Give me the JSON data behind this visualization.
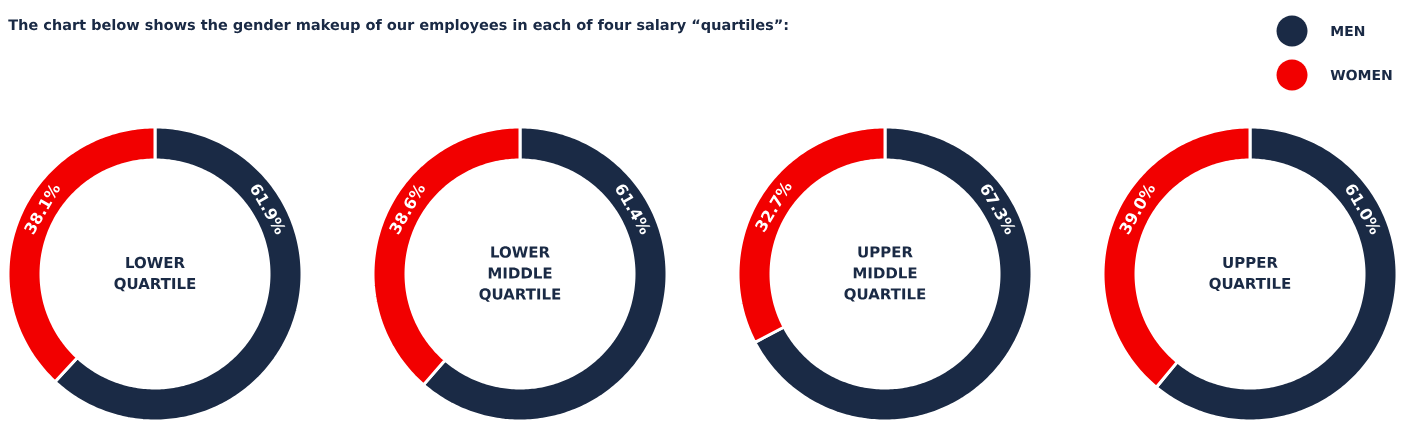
{
  "chart_data": [
    {
      "type": "donut",
      "title": "LOWER QUARTILE",
      "categories": [
        null,
        null
      ],
      "values": [
        61.9,
        38.1
      ],
      "colors": [
        "#1a2a45",
        "#f20000"
      ],
      "value_labels": [
        "61.9%",
        "38.1%"
      ],
      "annotations": [
        "The chart below shows the gender makeup of our employees in each of four salary “quartiles”:"
      ]
    },
    {
      "type": "donut",
      "title": "LOWER MIDDLE QUARTILE",
      "categories": [
        null,
        null
      ],
      "values": [
        61.4,
        38.6
      ],
      "colors": [
        "#1a2a45",
        "#f20000"
      ],
      "value_labels": [
        "61.4%",
        "38.6%"
      ]
    },
    {
      "type": "donut",
      "title": "UPPER MIDDLE QUARTILE",
      "categories": [
        null,
        null
      ],
      "values": [
        67.3,
        32.7
      ],
      "colors": [
        "#1a2a45",
        "#f20000"
      ],
      "value_labels": [
        "67.3%",
        "32.7%"
      ]
    },
    {
      "type": "donut",
      "title": "UPPER QUARTILE",
      "categories": [
        "MEN",
        "WOMEN"
      ],
      "values": [
        61.0,
        39.0
      ],
      "colors": [
        "#1a2a45",
        "#f20000"
      ],
      "value_labels": [
        "61.0%",
        "39.0%"
      ],
      "legend": "top right"
    }
  ]
}
